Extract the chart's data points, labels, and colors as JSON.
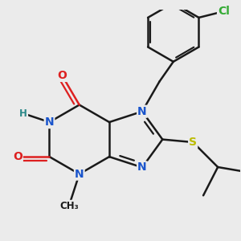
{
  "bg_color": "#ebebeb",
  "bond_color": "#1a1a1a",
  "bond_lw": 1.8,
  "atom_colors": {
    "N": "#1a55cc",
    "O": "#dd2020",
    "S": "#bbbb00",
    "Cl": "#33aa33",
    "H": "#2a8888"
  },
  "font_size": 10,
  "fig_size": [
    3.0,
    3.0
  ],
  "dpi": 100
}
